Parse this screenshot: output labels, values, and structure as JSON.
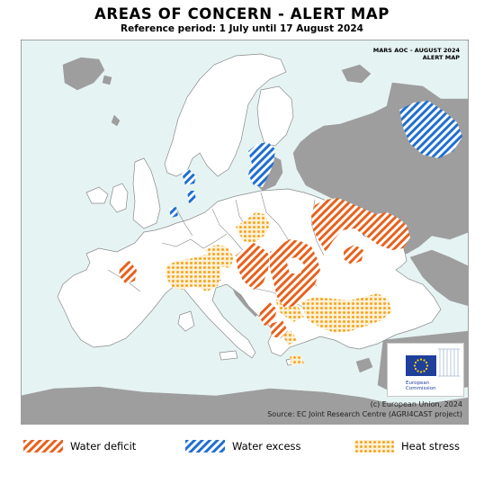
{
  "title": "AREAS OF CONCERN - ALERT MAP",
  "subtitle": "Reference period: 1 July until 17 August 2024",
  "corner_tag": {
    "line1": "MARS AOC - AUGUST 2024",
    "line2": "ALERT MAP"
  },
  "logo": {
    "text_line1": "European",
    "text_line2": "Commission"
  },
  "credit": {
    "line1": "(c) European Union, 2024",
    "line2": "Source: EC Joint Research Centre (AGRI4CAST project)"
  },
  "legend": [
    {
      "label": "Water deficit",
      "color": "#e8611c",
      "pattern": "diagonal-hatch"
    },
    {
      "label": "Water excess",
      "color": "#1f6fd1",
      "pattern": "diagonal-hatch"
    },
    {
      "label": "Heat stress",
      "color": "#f5a623",
      "pattern": "dots"
    }
  ],
  "colors": {
    "sea": "#e6f3f3",
    "land_monitored": "#ffffff",
    "land_outside": "#9e9e9e",
    "borders": "#777777"
  }
}
